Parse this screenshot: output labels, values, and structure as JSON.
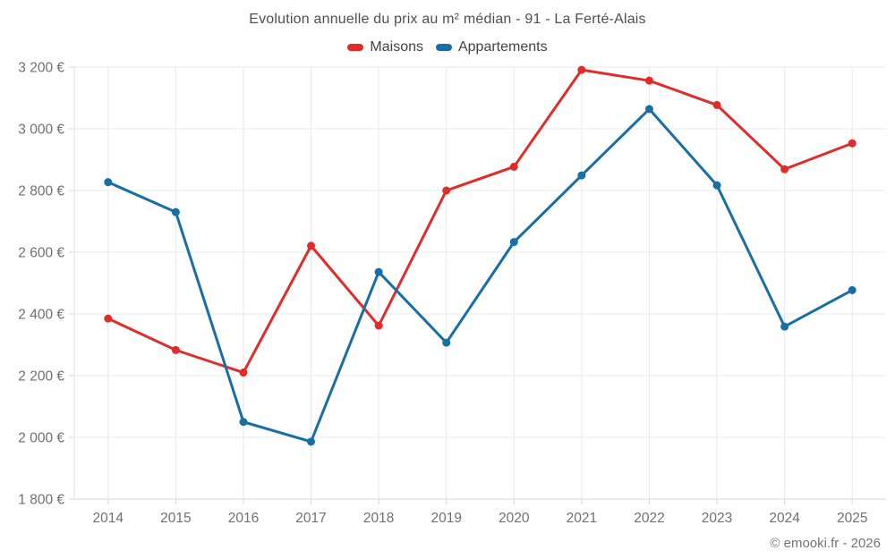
{
  "page": {
    "footer": "© emooki.fr - 2026"
  },
  "chart_data": {
    "type": "line",
    "title": "Evolution annuelle du prix au m² médian - 91 - La Ferté-Alais",
    "categories": [
      "2014",
      "2015",
      "2016",
      "2017",
      "2018",
      "2019",
      "2020",
      "2021",
      "2022",
      "2023",
      "2024",
      "2025"
    ],
    "series": [
      {
        "name": "Maisons",
        "color": "#e12d29",
        "values": [
          2385,
          2283,
          2210,
          2621,
          2362,
          2800,
          2877,
          3191,
          3156,
          3077,
          2869,
          2953
        ]
      },
      {
        "name": "Appartements",
        "color": "#186fa5",
        "values": [
          2827,
          2730,
          2050,
          1986,
          2536,
          2307,
          2633,
          2849,
          3064,
          2817,
          2359,
          2477
        ]
      }
    ],
    "ylim": [
      1800,
      3200
    ],
    "ytick_step": 200,
    "ytick_labels": [
      "1 800 €",
      "2 000 €",
      "2 200 €",
      "2 400 €",
      "2 600 €",
      "2 800 €",
      "3 000 €",
      "3 200 €"
    ],
    "grid": true,
    "legend_position": "top",
    "currency_suffix": "€"
  }
}
